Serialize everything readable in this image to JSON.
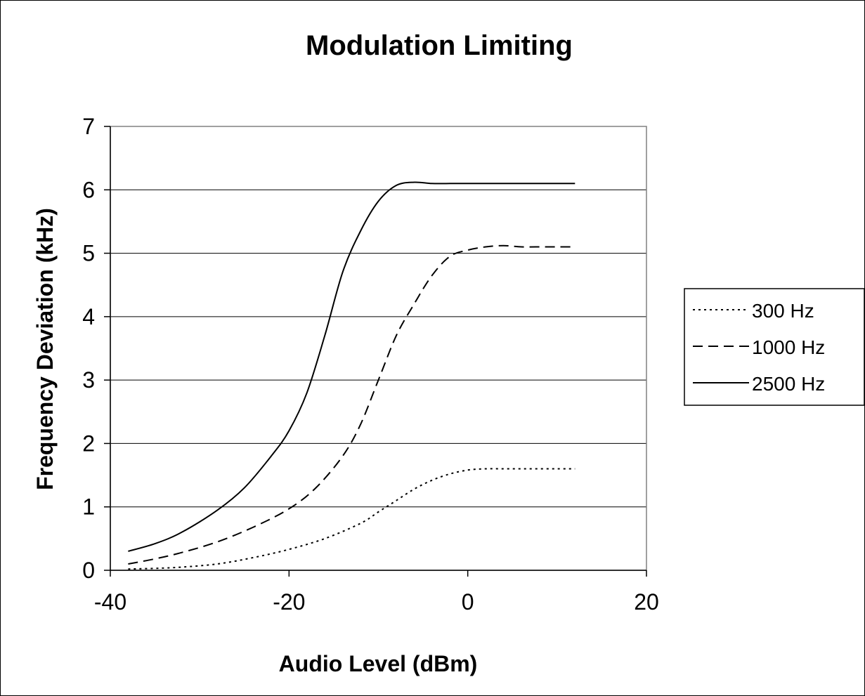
{
  "chart_data": {
    "type": "line",
    "title": "Modulation Limiting",
    "xlabel": "Audio Level (dBm)",
    "ylabel": "Frequency Deviation (kHz)",
    "xlim": [
      -40,
      20
    ],
    "ylim": [
      0,
      7
    ],
    "xticks": [
      -40,
      -20,
      0,
      20
    ],
    "yticks": [
      0,
      1,
      2,
      3,
      4,
      5,
      6,
      7
    ],
    "grid": "horizontal",
    "legend_position": "right",
    "series": [
      {
        "name": "300 Hz",
        "style": "dotted",
        "x": [
          -38,
          -35,
          -32,
          -28,
          -24,
          -20,
          -16,
          -12,
          -10,
          -8,
          -6,
          -4,
          -2,
          0,
          2,
          4,
          6,
          8,
          10,
          12
        ],
        "y": [
          0.02,
          0.03,
          0.05,
          0.1,
          0.2,
          0.33,
          0.5,
          0.74,
          0.92,
          1.1,
          1.28,
          1.42,
          1.52,
          1.58,
          1.6,
          1.6,
          1.6,
          1.6,
          1.6,
          1.6
        ]
      },
      {
        "name": "1000 Hz",
        "style": "dashed",
        "x": [
          -38,
          -35,
          -32,
          -28,
          -24,
          -20,
          -17,
          -14,
          -12,
          -10,
          -8,
          -6,
          -4,
          -2,
          0,
          2,
          4,
          6,
          8,
          10,
          12
        ],
        "y": [
          0.1,
          0.18,
          0.28,
          0.45,
          0.68,
          0.97,
          1.3,
          1.8,
          2.3,
          3.0,
          3.7,
          4.2,
          4.65,
          4.95,
          5.05,
          5.1,
          5.12,
          5.1,
          5.1,
          5.1,
          5.1
        ]
      },
      {
        "name": "2500 Hz",
        "style": "solid",
        "x": [
          -38,
          -35,
          -32,
          -28,
          -25,
          -22,
          -20,
          -18,
          -16,
          -14,
          -12,
          -10,
          -8,
          -6,
          -4,
          -2,
          0,
          4,
          8,
          12
        ],
        "y": [
          0.3,
          0.42,
          0.6,
          0.95,
          1.3,
          1.8,
          2.2,
          2.8,
          3.7,
          4.7,
          5.35,
          5.82,
          6.07,
          6.12,
          6.1,
          6.1,
          6.1,
          6.1,
          6.1,
          6.1
        ]
      }
    ]
  }
}
